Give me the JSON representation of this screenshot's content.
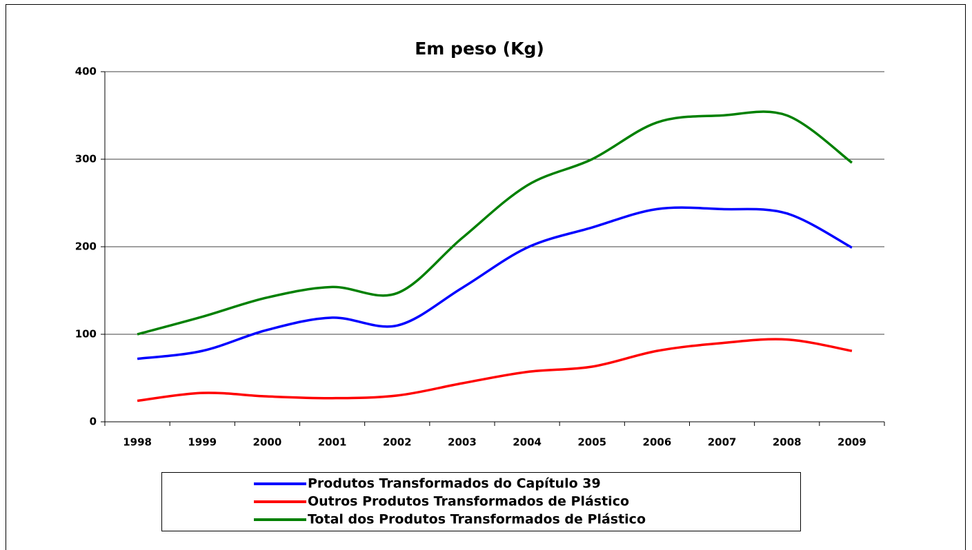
{
  "chart_data": {
    "type": "line",
    "title": "Em peso (Kg)",
    "categories": [
      "1998",
      "1999",
      "2000",
      "2001",
      "2002",
      "2003",
      "2004",
      "2005",
      "2006",
      "2007",
      "2008",
      "2009"
    ],
    "series": [
      {
        "name": "Produtos Transformados do Capítulo 39",
        "color": "#0000ff",
        "values": [
          72,
          81,
          105,
          119,
          110,
          153,
          199,
          222,
          243,
          243,
          238,
          199
        ]
      },
      {
        "name": "Outros Produtos Transformados de Plástico",
        "color": "#ff0000",
        "values": [
          24,
          33,
          29,
          27,
          30,
          44,
          57,
          63,
          81,
          90,
          94,
          81
        ]
      },
      {
        "name": "Total dos Produtos Transformados de Plástico",
        "color": "#008000",
        "values": [
          100,
          120,
          142,
          154,
          147,
          210,
          270,
          300,
          342,
          350,
          350,
          296
        ]
      }
    ],
    "ylim": [
      0,
      400
    ],
    "yticks": [
      0,
      100,
      200,
      300,
      400
    ],
    "grid": true,
    "smooth": true,
    "legend": "bottom"
  }
}
